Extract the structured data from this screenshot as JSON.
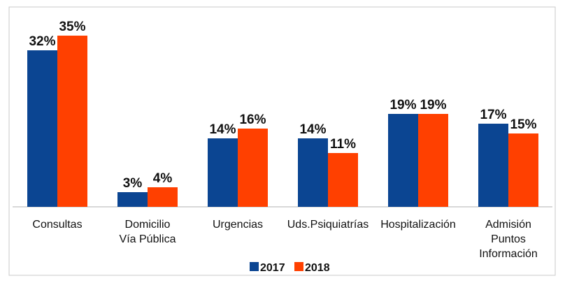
{
  "chart_data": {
    "type": "bar",
    "categories": [
      [
        "Consultas"
      ],
      [
        "Domicilio",
        "Vía Pública"
      ],
      [
        "Urgencias"
      ],
      [
        "Uds.Psiquiatrías"
      ],
      [
        "Hospitalización"
      ],
      [
        "Admisión",
        "Puntos",
        "Información"
      ]
    ],
    "series": [
      {
        "name": "2017",
        "color": "#0b4592",
        "values": [
          32,
          3,
          14,
          14,
          19,
          17
        ],
        "labels": [
          "32%",
          "3%",
          "14%",
          "14%",
          "19%",
          "17%"
        ]
      },
      {
        "name": "2018",
        "color": "#ff4000",
        "values": [
          35,
          4,
          16,
          11,
          19,
          15
        ],
        "labels": [
          "35%",
          "4%",
          "16%",
          "11%",
          "19%",
          "15%"
        ]
      }
    ],
    "ylim": [
      0,
      40
    ],
    "grid": false,
    "legend_position": "bottom"
  }
}
